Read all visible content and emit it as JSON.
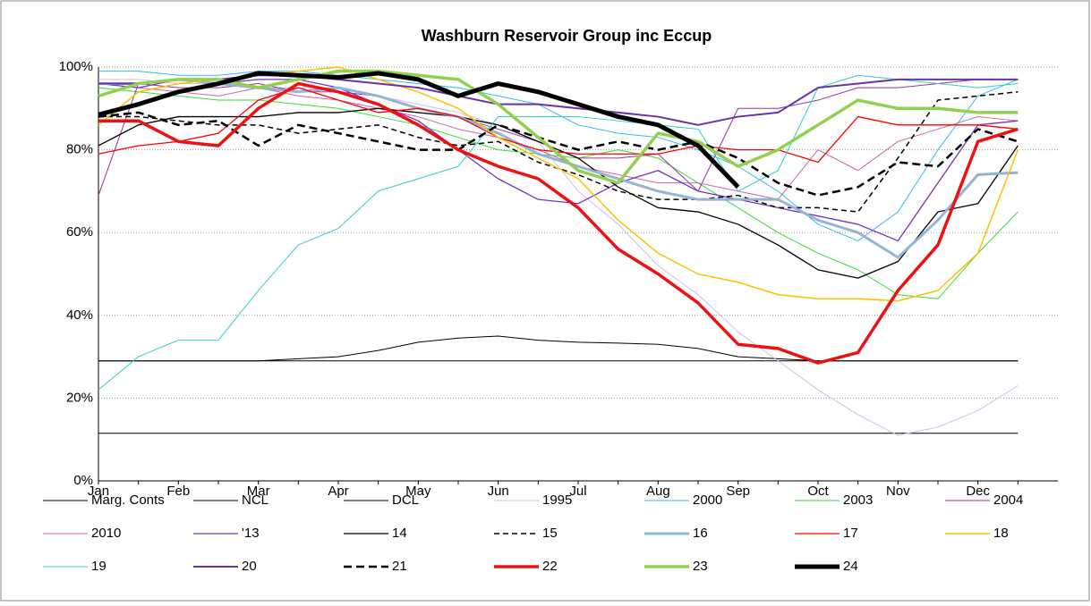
{
  "chart_data": {
    "type": "line",
    "title": "Washburn Reservoir Group inc Eccup",
    "categories": [
      "Jan",
      null,
      "Feb",
      null,
      "Mar",
      null,
      "Apr",
      null,
      "May",
      null,
      "Jun",
      null,
      "Jul",
      null,
      "Aug",
      null,
      "Sep",
      null,
      "Oct",
      null,
      "Nov",
      null,
      "Dec",
      null
    ],
    "ylim": [
      0,
      100
    ],
    "yticks": [
      {
        "value": 0,
        "label": "0%"
      },
      {
        "value": 20,
        "label": "20%"
      },
      {
        "value": 40,
        "label": "40%"
      },
      {
        "value": 60,
        "label": "60%"
      },
      {
        "value": 80,
        "label": "80%"
      },
      {
        "value": 100,
        "label": "100%"
      }
    ],
    "grid": true,
    "legend": "bottom",
    "series": [
      {
        "name": "Marg. Conts",
        "color": "#000000",
        "width": 1,
        "values": [
          29,
          29,
          29,
          29,
          29,
          29.5,
          30,
          31.5,
          33.5,
          34.5,
          35,
          34,
          33.5,
          33.3,
          33,
          32,
          30,
          29.5,
          29,
          29,
          29,
          29,
          29,
          29
        ]
      },
      {
        "name": "NCL",
        "color": "#000000",
        "width": 1,
        "values": [
          29,
          29,
          29,
          29,
          29,
          29,
          29,
          29,
          29,
          29,
          29,
          29,
          29,
          29,
          29,
          29,
          29,
          29,
          29,
          29,
          29,
          29,
          29,
          29
        ]
      },
      {
        "name": "DCL",
        "color": "#000000",
        "width": 1,
        "values": [
          11.5,
          11.5,
          11.5,
          11.5,
          11.5,
          11.5,
          11.5,
          11.5,
          11.5,
          11.5,
          11.5,
          11.5,
          11.5,
          11.5,
          11.5,
          11.5,
          11.5,
          11.5,
          11.5,
          11.5,
          11.5,
          11.5,
          11.5,
          11.5
        ]
      },
      {
        "name": "1995",
        "color": "#ccc0ee",
        "width": 1,
        "values": [
          97,
          97,
          96,
          96,
          95,
          95,
          94,
          93,
          91,
          89,
          86,
          82,
          70,
          62,
          52,
          45,
          36,
          29,
          22,
          16,
          11,
          13,
          17,
          23
        ]
      },
      {
        "name": "2000",
        "color": "#33bbee",
        "width": 1,
        "values": [
          99,
          99,
          98,
          98,
          99,
          99,
          98,
          97,
          96,
          95,
          93,
          91,
          86,
          84,
          83,
          80,
          76,
          70,
          62,
          58,
          65,
          80,
          93,
          97
        ]
      },
      {
        "name": "2003",
        "color": "#33dd33",
        "width": 1,
        "values": [
          95,
          94,
          93,
          92,
          92,
          91,
          90,
          88,
          86,
          83,
          80,
          79,
          78,
          80,
          78,
          72,
          66,
          60,
          55,
          51,
          45,
          44,
          55,
          65
        ]
      },
      {
        "name": "2004",
        "color": "#993399",
        "width": 1,
        "values": [
          69,
          96,
          95,
          95,
          96,
          94,
          94,
          93,
          90,
          88,
          85,
          82,
          78,
          78,
          79,
          70,
          90,
          90,
          92,
          95,
          95,
          96,
          97,
          97
        ]
      },
      {
        "name": "2010",
        "color": "#cc66aa",
        "width": 1,
        "values": [
          96,
          95,
          94,
          93,
          95,
          93,
          92,
          90,
          88,
          85,
          83,
          80,
          76,
          74,
          72,
          72,
          70,
          68,
          80,
          75,
          82,
          85,
          88,
          87
        ]
      },
      {
        "name": "'13",
        "color": "#7733bb",
        "width": 1.3,
        "values": [
          96,
          95,
          97,
          96,
          97,
          97,
          95,
          91,
          87,
          80,
          73,
          68,
          67,
          72,
          75,
          70,
          68,
          66,
          64,
          62,
          58,
          72,
          86,
          87
        ]
      },
      {
        "name": "14",
        "color": "#000000",
        "width": 1.3,
        "values": [
          81,
          86,
          88,
          88,
          88,
          89,
          89,
          90,
          89,
          88,
          86,
          82,
          78,
          71,
          66,
          65,
          62,
          57,
          51,
          49,
          53,
          65,
          67,
          81
        ]
      },
      {
        "name": "15",
        "color": "#000000",
        "width": 1.5,
        "dashed": true,
        "values": [
          88,
          88,
          87,
          86,
          86,
          84,
          85,
          86,
          83,
          81,
          82,
          77,
          74,
          70,
          68,
          68,
          69,
          66,
          66,
          65,
          78,
          92,
          93,
          94
        ]
      },
      {
        "name": "16",
        "color": "#95b3d7",
        "width": 3,
        "values": [
          96,
          96,
          97,
          96,
          95,
          94,
          95,
          93,
          90,
          88,
          84,
          79,
          76,
          73,
          70,
          68,
          68,
          68,
          63,
          60,
          54,
          63,
          74,
          74.5
        ]
      },
      {
        "name": "17",
        "color": "#ff0000",
        "width": 1.3,
        "values": [
          79,
          81,
          82,
          84,
          92,
          95,
          92,
          89,
          90,
          88,
          83,
          80,
          79,
          79,
          79,
          81,
          80,
          80,
          77,
          88,
          86,
          86,
          86,
          85
        ]
      },
      {
        "name": "18",
        "color": "#ffc000",
        "width": 1.5,
        "values": [
          86,
          94,
          96,
          97,
          98,
          99,
          100,
          97,
          94,
          90,
          83,
          78,
          73,
          63,
          55,
          50,
          48,
          45,
          44,
          44,
          43.5,
          46,
          55,
          80
        ]
      },
      {
        "name": "19",
        "color": "#33cccc",
        "width": 1,
        "values": [
          22,
          30,
          34,
          34,
          46,
          57,
          61,
          70,
          73,
          76,
          88,
          88,
          88,
          87,
          86,
          85,
          70,
          75,
          95,
          98,
          97,
          96,
          95,
          96
        ]
      },
      {
        "name": "20",
        "color": "#6633aa",
        "width": 2,
        "values": [
          96,
          96,
          97,
          97,
          98,
          98,
          97,
          96,
          95,
          93,
          91,
          91,
          90,
          89,
          88,
          86,
          88,
          89,
          95,
          96,
          97,
          97,
          97,
          97
        ]
      },
      {
        "name": "21",
        "color": "#000000",
        "width": 2.5,
        "dashed": true,
        "values": [
          88,
          89,
          86,
          87,
          81,
          86,
          84,
          82,
          80,
          80,
          86,
          83,
          80,
          82,
          80,
          82,
          78,
          72,
          69,
          71,
          77,
          76,
          85,
          82
        ]
      },
      {
        "name": "22",
        "color": "#ee1111",
        "width": 3.5,
        "values": [
          87,
          87,
          82,
          81,
          90,
          96,
          94,
          91,
          86,
          80,
          76,
          73,
          66,
          56,
          50,
          43,
          33,
          32,
          28.5,
          31,
          46,
          57,
          82,
          85
        ]
      },
      {
        "name": "23",
        "color": "#92d050",
        "width": 3.5,
        "values": [
          93,
          96,
          97,
          97,
          95,
          97,
          99,
          99,
          98,
          97,
          91,
          83,
          75,
          72,
          84,
          82,
          76,
          80,
          86,
          92,
          90,
          90,
          89,
          89
        ]
      },
      {
        "name": "24",
        "color": "#000000",
        "width": 5,
        "values": [
          88.5,
          91,
          94,
          96,
          98.5,
          98,
          97.5,
          98.5,
          97,
          93,
          96,
          94,
          91,
          88,
          86,
          81,
          71,
          null,
          null,
          null,
          null,
          null,
          null,
          null
        ]
      }
    ]
  }
}
